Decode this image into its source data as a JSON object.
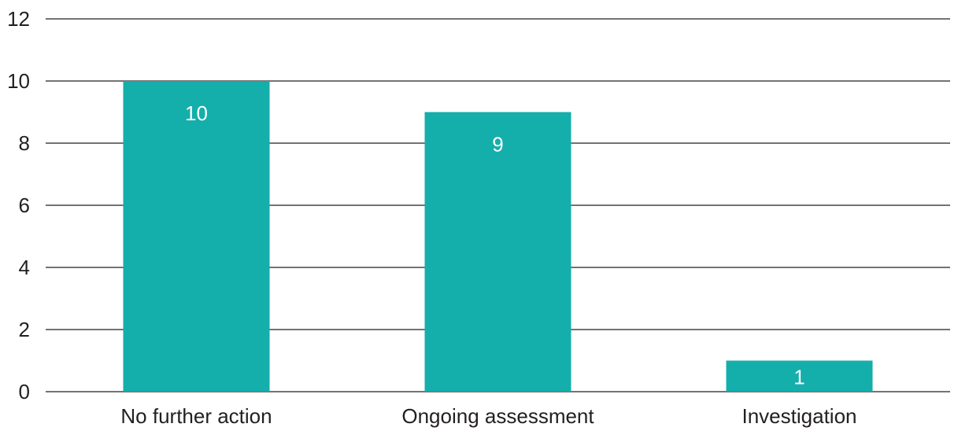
{
  "chart_data": {
    "type": "bar",
    "categories": [
      "No further action",
      "Ongoing assessment",
      "Investigation"
    ],
    "values": [
      10,
      9,
      1
    ],
    "data_labels": [
      "10",
      "9",
      "1"
    ],
    "title": "",
    "xlabel": "",
    "ylabel": "",
    "ylim": [
      0,
      12
    ],
    "yticks": [
      "0",
      "2",
      "4",
      "6",
      "8",
      "10",
      "12"
    ],
    "grid": true,
    "legend": "none",
    "bar_color": "#14aeab"
  }
}
